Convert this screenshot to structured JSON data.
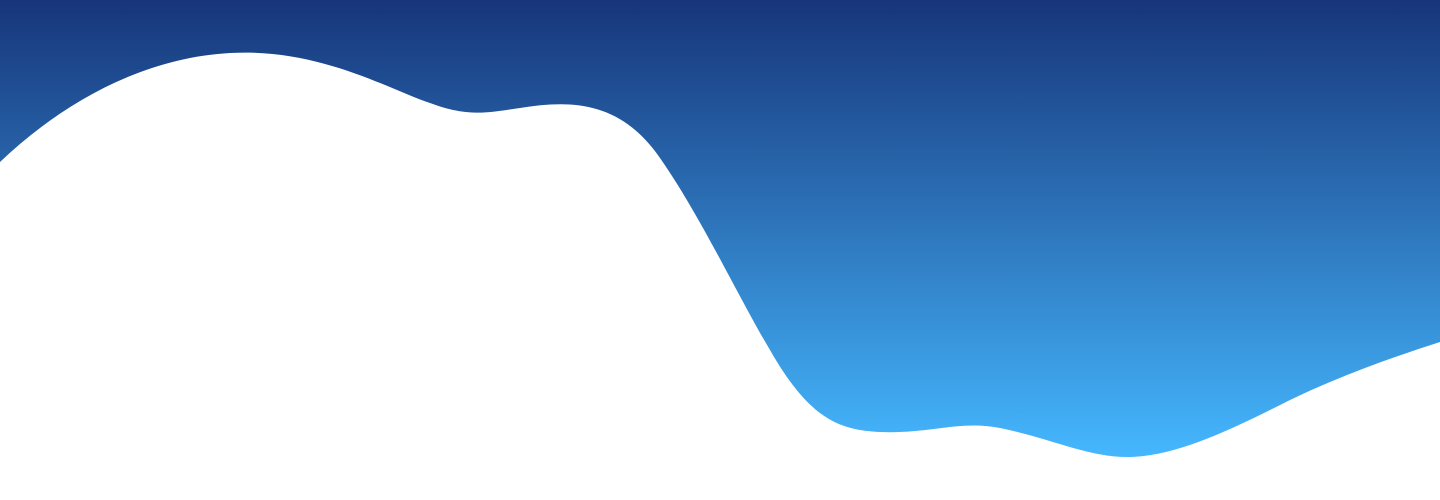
{
  "background": {
    "page_color": "#ffffff",
    "gradient_top_color": "#17357a",
    "gradient_bottom_color": "#45b8ff",
    "wave_fill_color": "#ffffff"
  }
}
